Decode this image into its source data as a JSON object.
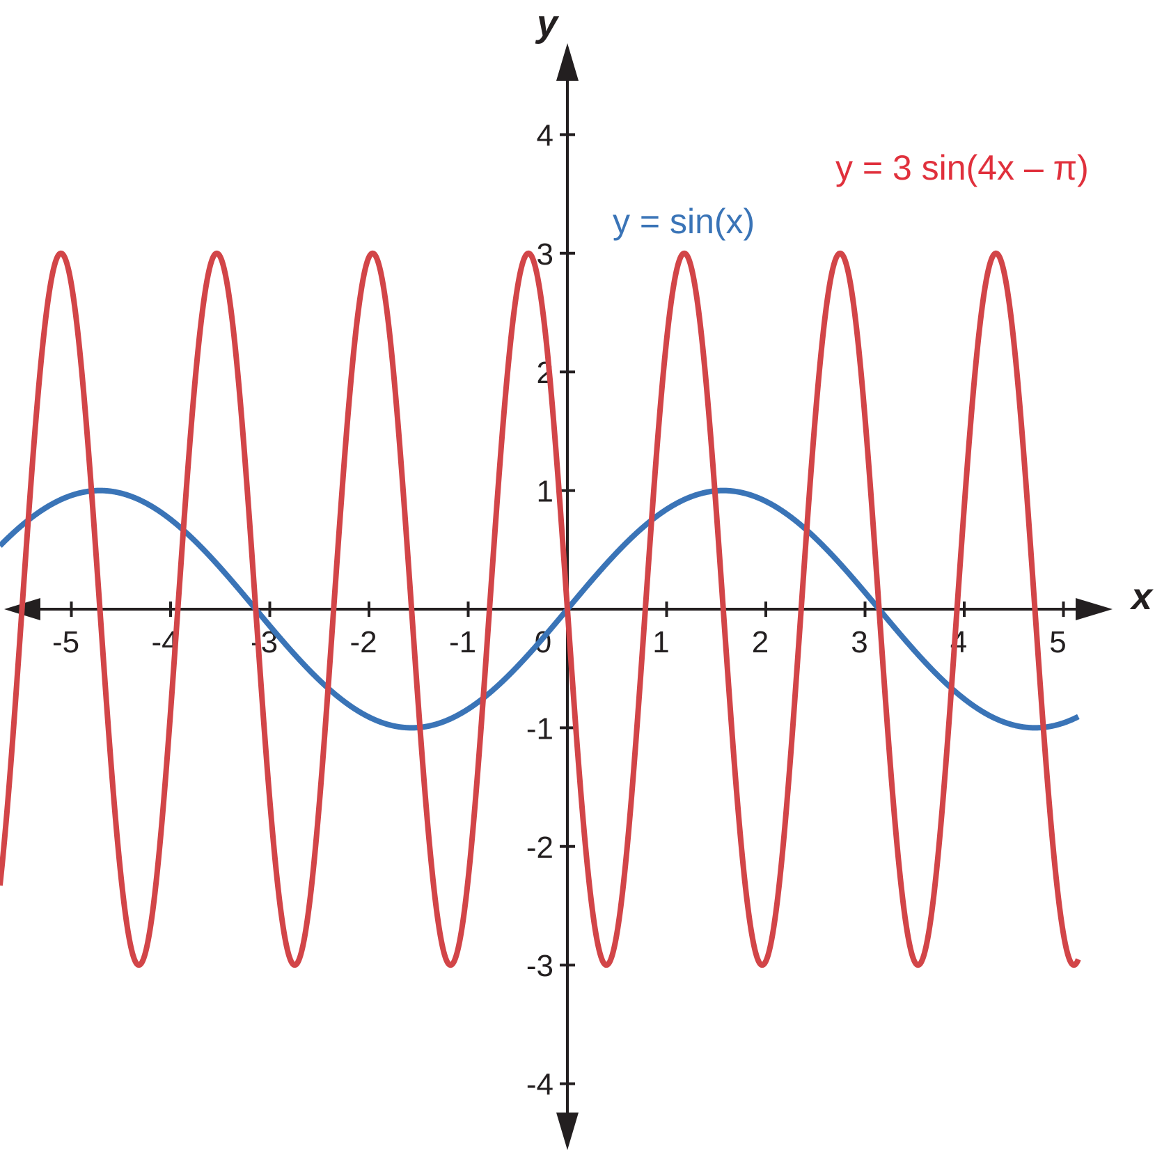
{
  "chart_data": {
    "type": "line",
    "xlabel": "x",
    "ylabel": "y",
    "xlim": [
      -5.75,
      5.5
    ],
    "ylim": [
      -4.4,
      4.9
    ],
    "x_ticks": [
      -5,
      -4,
      -3,
      -2,
      -1,
      0,
      1,
      2,
      3,
      4,
      5
    ],
    "y_ticks": [
      -4,
      -3,
      -2,
      -1,
      1,
      2,
      3,
      4
    ],
    "x_tick_labels": [
      "-5",
      "-4",
      "-3",
      "-2",
      "-1",
      "0",
      "1",
      "2",
      "3",
      "4",
      "5"
    ],
    "y_tick_labels": [
      "-4",
      "-3",
      "-2",
      "-1",
      "1",
      "2",
      "3",
      "4"
    ],
    "grid": false,
    "series": [
      {
        "name": "y = sin(x)",
        "function": "sin(x)",
        "color": "#3a74b7"
      },
      {
        "name": "y = 3 sin(4x – π)",
        "function": "3*sin(4*x - pi)",
        "color": "#d24548"
      }
    ]
  }
}
